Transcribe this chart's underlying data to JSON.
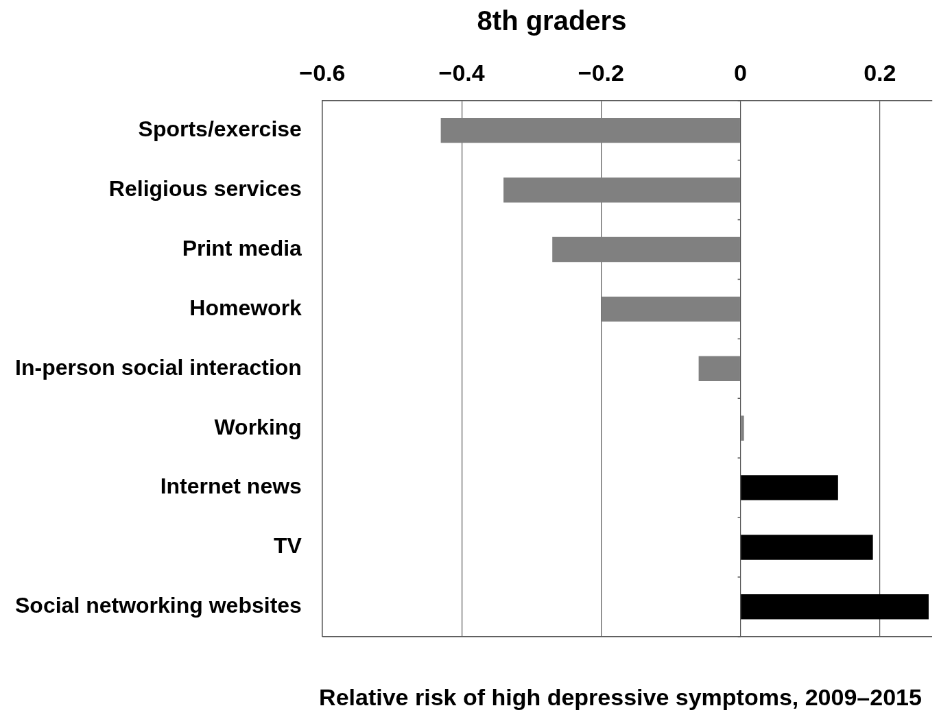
{
  "chart_data": {
    "type": "bar",
    "orientation": "horizontal",
    "title": "8th graders",
    "xlabel": "Relative risk of high depressive symptoms, 2009–2015",
    "categories": [
      "Sports/exercise",
      "Religious services",
      "Print media",
      "Homework",
      "In-person social interaction",
      "Working",
      "Internet news",
      "TV",
      "Social networking websites"
    ],
    "values": [
      -0.43,
      -0.34,
      -0.27,
      -0.2,
      -0.06,
      0.005,
      0.14,
      0.19,
      0.27
    ],
    "colors": [
      "#808080",
      "#808080",
      "#808080",
      "#808080",
      "#808080",
      "#808080",
      "#000000",
      "#000000",
      "#000000"
    ],
    "xlim": [
      -0.6,
      0.275
    ],
    "xticks": [
      {
        "value": -0.6,
        "label": "−0.6"
      },
      {
        "value": -0.4,
        "label": "−0.4"
      },
      {
        "value": -0.2,
        "label": "−0.2"
      },
      0,
      0.2
    ],
    "grid": "x",
    "legend": false
  }
}
